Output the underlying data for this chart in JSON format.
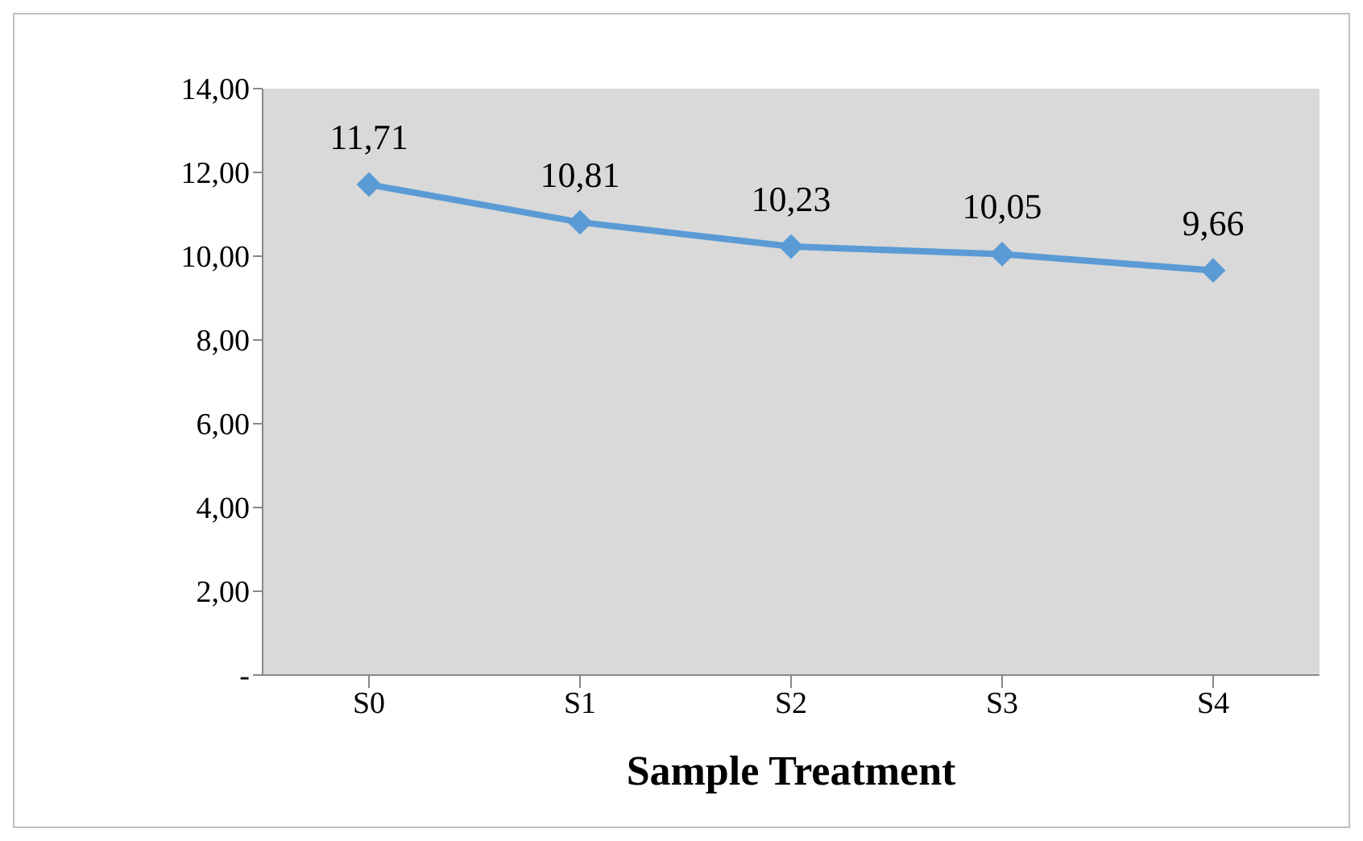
{
  "chart_data": {
    "type": "line",
    "xlabel": "Sample Treatment",
    "categories": [
      "S0",
      "S1",
      "S2",
      "S3",
      "S4"
    ],
    "series": [
      {
        "color": "#5b9bd5",
        "values": [
          11.71,
          10.81,
          10.23,
          10.05,
          9.66
        ],
        "value_labels": [
          "11,71",
          "10,81",
          "10,23",
          "10,05",
          "9,66"
        ]
      }
    ],
    "ylim": [
      0,
      14
    ],
    "yticks": [
      {
        "value": 0,
        "label": "-"
      },
      {
        "value": 2,
        "label": "2,00"
      },
      {
        "value": 4,
        "label": "4,00"
      },
      {
        "value": 6,
        "label": "6,00"
      },
      {
        "value": 8,
        "label": "8,00"
      },
      {
        "value": 10,
        "label": "10,00"
      },
      {
        "value": 12,
        "label": "12,00"
      },
      {
        "value": 14,
        "label": "14,00"
      }
    ],
    "grid": false,
    "legend": false,
    "marker": "diamond",
    "line_style": "solid"
  }
}
